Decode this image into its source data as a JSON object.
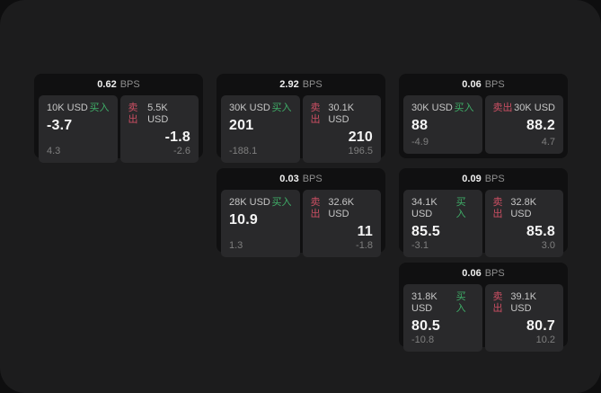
{
  "colors": {
    "page_bg": "#0e0e0f",
    "panel_bg": "#1c1c1d",
    "card_bg": "#101011",
    "tile_bg": "#29292b",
    "text_primary": "#f4f4f4",
    "text_label": "#c6c6c6",
    "text_sub": "#7f7f7f",
    "text_bps_unit": "#8f8f8f",
    "buy_green": "#3fae68",
    "sell_red": "#cc4f63"
  },
  "labels": {
    "bps_unit": "BPS",
    "buy": "买入",
    "sell": "卖出"
  },
  "cards": [
    {
      "bps": "0.62",
      "grid": {
        "row": 1,
        "col": 1
      },
      "buy": {
        "amount": "10K USD",
        "value": "-3.7",
        "sub": "4.3"
      },
      "sell": {
        "amount": "5.5K USD",
        "value": "-1.8",
        "sub": "-2.6"
      }
    },
    {
      "bps": "2.92",
      "grid": {
        "row": 1,
        "col": 2
      },
      "buy": {
        "amount": "30K USD",
        "value": "201",
        "sub": "-188.1"
      },
      "sell": {
        "amount": "30.1K USD",
        "value": "210",
        "sub": "196.5"
      }
    },
    {
      "bps": "0.06",
      "grid": {
        "row": 1,
        "col": 3
      },
      "buy": {
        "amount": "30K USD",
        "value": "88",
        "sub": "-4.9"
      },
      "sell": {
        "amount": "30K USD",
        "value": "88.2",
        "sub": "4.7"
      }
    },
    {
      "bps": "0.03",
      "grid": {
        "row": 2,
        "col": 2
      },
      "buy": {
        "amount": "28K USD",
        "value": "10.9",
        "sub": "1.3"
      },
      "sell": {
        "amount": "32.6K USD",
        "value": "11",
        "sub": "-1.8"
      }
    },
    {
      "bps": "0.09",
      "grid": {
        "row": 2,
        "col": 3
      },
      "buy": {
        "amount": "34.1K USD",
        "value": "85.5",
        "sub": "-3.1"
      },
      "sell": {
        "amount": "32.8K USD",
        "value": "85.8",
        "sub": "3.0"
      }
    },
    {
      "bps": "0.06",
      "grid": {
        "row": 3,
        "col": 3
      },
      "buy": {
        "amount": "31.8K USD",
        "value": "80.5",
        "sub": "-10.8"
      },
      "sell": {
        "amount": "39.1K USD",
        "value": "80.7",
        "sub": "10.2"
      }
    }
  ]
}
